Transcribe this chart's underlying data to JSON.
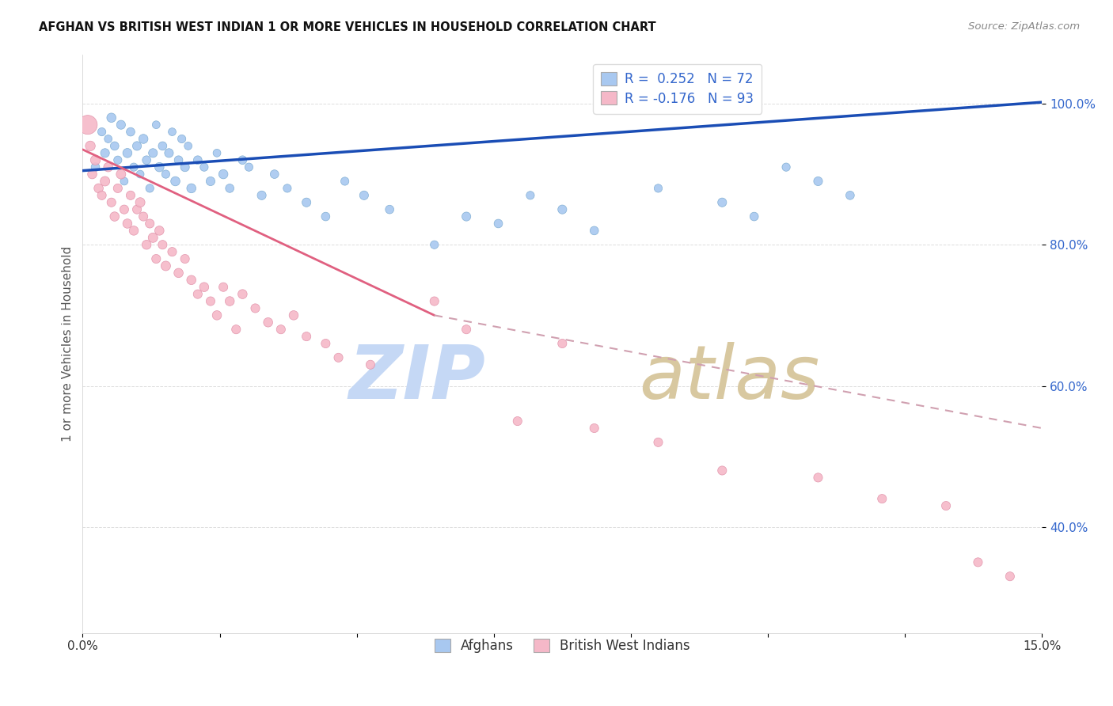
{
  "title": "AFGHAN VS BRITISH WEST INDIAN 1 OR MORE VEHICLES IN HOUSEHOLD CORRELATION CHART",
  "source": "Source: ZipAtlas.com",
  "ylabel": "1 or more Vehicles in Household",
  "xlim": [
    0.0,
    15.0
  ],
  "ylim": [
    25.0,
    107.0
  ],
  "ytick_values": [
    40.0,
    60.0,
    80.0,
    100.0
  ],
  "afghan_R": 0.252,
  "afghan_N": 72,
  "bwi_R": -0.176,
  "bwi_N": 93,
  "afghan_color": "#a8c8f0",
  "afghan_edge_color": "#7aaad0",
  "bwi_color": "#f5b8c8",
  "bwi_edge_color": "#e090a8",
  "afghan_line_color": "#1a4db5",
  "bwi_line_color": "#e06080",
  "bwi_dashed_color": "#d0a0b0",
  "watermark_zip_color": "#c5d8f5",
  "watermark_atlas_color": "#d8c8a0",
  "background_color": "#ffffff",
  "grid_color": "#dddddd",
  "ytick_color": "#3366cc",
  "afghan_scatter_x": [
    0.2,
    0.3,
    0.35,
    0.4,
    0.45,
    0.5,
    0.55,
    0.6,
    0.65,
    0.7,
    0.75,
    0.8,
    0.85,
    0.9,
    0.95,
    1.0,
    1.05,
    1.1,
    1.15,
    1.2,
    1.25,
    1.3,
    1.35,
    1.4,
    1.45,
    1.5,
    1.55,
    1.6,
    1.65,
    1.7,
    1.8,
    1.9,
    2.0,
    2.1,
    2.2,
    2.3,
    2.5,
    2.6,
    2.8,
    3.0,
    3.2,
    3.5,
    3.8,
    4.1,
    4.4,
    4.8,
    5.5,
    6.0,
    6.5,
    7.0,
    7.5,
    8.0,
    9.0,
    10.0,
    10.5,
    11.0,
    11.5,
    12.0
  ],
  "afghan_scatter_y": [
    91,
    96,
    93,
    95,
    98,
    94,
    92,
    97,
    89,
    93,
    96,
    91,
    94,
    90,
    95,
    92,
    88,
    93,
    97,
    91,
    94,
    90,
    93,
    96,
    89,
    92,
    95,
    91,
    94,
    88,
    92,
    91,
    89,
    93,
    90,
    88,
    92,
    91,
    87,
    90,
    88,
    86,
    84,
    89,
    87,
    85,
    80,
    84,
    83,
    87,
    85,
    82,
    88,
    86,
    84,
    91,
    89,
    87
  ],
  "afghan_scatter_s": [
    60,
    55,
    65,
    50,
    70,
    60,
    55,
    65,
    50,
    70,
    60,
    55,
    65,
    50,
    70,
    60,
    55,
    65,
    50,
    70,
    60,
    55,
    65,
    50,
    70,
    60,
    55,
    65,
    50,
    70,
    60,
    55,
    65,
    50,
    70,
    60,
    60,
    55,
    65,
    60,
    55,
    65,
    60,
    55,
    65,
    60,
    55,
    65,
    60,
    55,
    65,
    60,
    55,
    65,
    60,
    55,
    65,
    60
  ],
  "bwi_scatter_x": [
    0.08,
    0.12,
    0.15,
    0.2,
    0.25,
    0.3,
    0.35,
    0.4,
    0.45,
    0.5,
    0.55,
    0.6,
    0.65,
    0.7,
    0.75,
    0.8,
    0.85,
    0.9,
    0.95,
    1.0,
    1.05,
    1.1,
    1.15,
    1.2,
    1.25,
    1.3,
    1.4,
    1.5,
    1.6,
    1.7,
    1.8,
    1.9,
    2.0,
    2.1,
    2.2,
    2.3,
    2.4,
    2.5,
    2.7,
    2.9,
    3.1,
    3.3,
    3.5,
    3.8,
    4.0,
    4.5,
    5.5,
    6.0,
    6.8,
    7.5,
    8.0,
    9.0,
    10.0,
    11.5,
    12.5,
    13.5,
    14.0,
    14.5
  ],
  "bwi_scatter_y": [
    97,
    94,
    90,
    92,
    88,
    87,
    89,
    91,
    86,
    84,
    88,
    90,
    85,
    83,
    87,
    82,
    85,
    86,
    84,
    80,
    83,
    81,
    78,
    82,
    80,
    77,
    79,
    76,
    78,
    75,
    73,
    74,
    72,
    70,
    74,
    72,
    68,
    73,
    71,
    69,
    68,
    70,
    67,
    66,
    64,
    63,
    72,
    68,
    55,
    66,
    54,
    52,
    48,
    47,
    44,
    43,
    35,
    33
  ],
  "bwi_scatter_s": [
    300,
    80,
    70,
    80,
    70,
    65,
    75,
    70,
    65,
    70,
    65,
    75,
    65,
    70,
    65,
    70,
    65,
    75,
    65,
    70,
    65,
    75,
    65,
    70,
    65,
    75,
    65,
    70,
    65,
    70,
    65,
    70,
    65,
    70,
    65,
    70,
    65,
    70,
    65,
    70,
    65,
    70,
    65,
    65,
    65,
    65,
    65,
    65,
    65,
    65,
    65,
    65,
    65,
    65,
    65,
    65,
    65,
    65
  ],
  "afghan_trend_x0": 0.0,
  "afghan_trend_y0": 90.5,
  "afghan_trend_x1": 15.0,
  "afghan_trend_y1": 100.2,
  "bwi_solid_x0": 0.0,
  "bwi_solid_y0": 93.5,
  "bwi_solid_x1": 5.5,
  "bwi_solid_y1": 70.0,
  "bwi_dash_x0": 5.5,
  "bwi_dash_y0": 70.0,
  "bwi_dash_x1": 15.0,
  "bwi_dash_y1": 54.0
}
